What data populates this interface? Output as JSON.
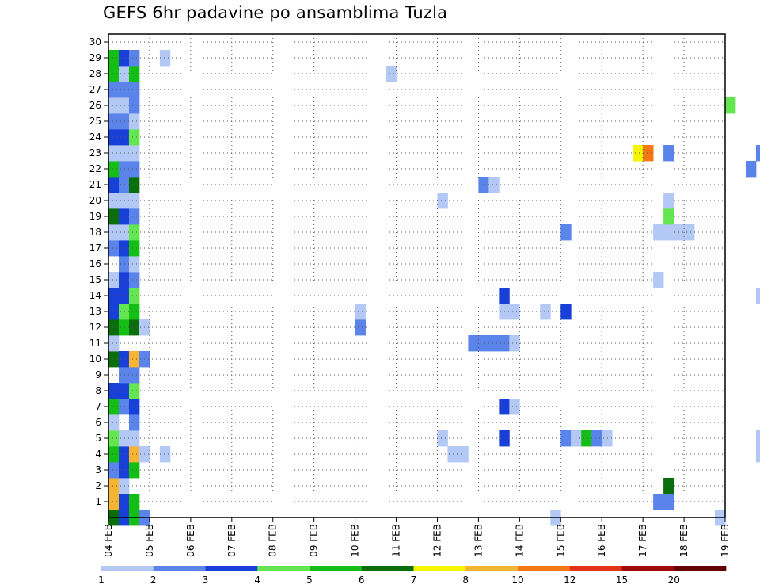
{
  "chart_data": {
    "type": "heatmap",
    "title": "GEFS 6hr padavine po ansamblima Tuzla",
    "xlabel": "",
    "ylabel": "",
    "x_tick_labels": [
      "04 FEB",
      "05 FEB",
      "06 FEB",
      "07 FEB",
      "08 FEB",
      "09 FEB",
      "10 FEB",
      "11 FEB",
      "12 FEB",
      "13 FEB",
      "14 FEB",
      "15 FEB",
      "16 FEB",
      "17 FEB",
      "18 FEB",
      "19 FEB"
    ],
    "y_tick_labels": [
      "1",
      "2",
      "3",
      "4",
      "5",
      "6",
      "7",
      "8",
      "9",
      "10",
      "11",
      "12",
      "13",
      "14",
      "15",
      "16",
      "17",
      "18",
      "19",
      "20",
      "21",
      "22",
      "23",
      "24",
      "25",
      "26",
      "27",
      "28",
      "29",
      "30"
    ],
    "time_steps_per_day": 4,
    "x_range_days": [
      0,
      15
    ],
    "members_range": [
      0,
      30
    ],
    "grid": true,
    "colorbar": {
      "tick_labels": [
        "1",
        "2",
        "3",
        "4",
        "5",
        "6",
        "7",
        "8",
        "10",
        "12",
        "15",
        "20"
      ],
      "colors": [
        "#b4c8f5",
        "#5a84ea",
        "#1840d8",
        "#64e650",
        "#14be14",
        "#0a6e0a",
        "#f5f500",
        "#f5b432",
        "#f57814",
        "#e63214",
        "#a00a0a",
        "#640000"
      ]
    },
    "cells": [
      [
        0,
        0,
        5
      ],
      [
        0,
        1,
        7
      ],
      [
        0,
        2,
        7
      ],
      [
        0,
        3,
        1
      ],
      [
        0,
        4,
        4
      ],
      [
        0,
        5,
        3
      ],
      [
        0,
        6,
        0
      ],
      [
        0,
        7,
        4
      ],
      [
        0,
        8,
        2
      ],
      [
        0,
        10,
        5
      ],
      [
        0,
        11,
        0
      ],
      [
        0,
        12,
        5
      ],
      [
        0,
        13,
        2
      ],
      [
        0,
        14,
        2
      ],
      [
        0,
        15,
        0
      ],
      [
        0,
        17,
        1
      ],
      [
        0,
        18,
        0
      ],
      [
        0,
        19,
        5
      ],
      [
        0,
        20,
        0
      ],
      [
        0,
        21,
        2
      ],
      [
        0,
        22,
        4
      ],
      [
        0,
        23,
        0
      ],
      [
        0,
        24,
        2
      ],
      [
        0,
        25,
        1
      ],
      [
        0,
        26,
        0
      ],
      [
        0,
        27,
        1
      ],
      [
        0,
        28,
        4
      ],
      [
        0,
        29,
        4
      ],
      [
        1,
        0,
        2
      ],
      [
        1,
        1,
        2
      ],
      [
        1,
        2,
        0
      ],
      [
        1,
        3,
        2
      ],
      [
        1,
        4,
        2
      ],
      [
        1,
        5,
        0
      ],
      [
        1,
        7,
        1
      ],
      [
        1,
        8,
        2
      ],
      [
        1,
        9,
        1
      ],
      [
        1,
        10,
        2
      ],
      [
        1,
        12,
        4
      ],
      [
        1,
        13,
        3
      ],
      [
        1,
        14,
        2
      ],
      [
        1,
        15,
        2
      ],
      [
        1,
        16,
        1
      ],
      [
        1,
        17,
        2
      ],
      [
        1,
        18,
        0
      ],
      [
        1,
        19,
        2
      ],
      [
        1,
        20,
        0
      ],
      [
        1,
        21,
        1
      ],
      [
        1,
        22,
        1
      ],
      [
        1,
        23,
        0
      ],
      [
        1,
        24,
        2
      ],
      [
        1,
        25,
        1
      ],
      [
        1,
        26,
        0
      ],
      [
        1,
        27,
        1
      ],
      [
        1,
        28,
        0
      ],
      [
        1,
        29,
        2
      ],
      [
        2,
        0,
        4
      ],
      [
        2,
        1,
        4
      ],
      [
        2,
        3,
        4
      ],
      [
        2,
        4,
        7
      ],
      [
        2,
        5,
        0
      ],
      [
        2,
        6,
        1
      ],
      [
        2,
        7,
        2
      ],
      [
        2,
        8,
        3
      ],
      [
        2,
        9,
        1
      ],
      [
        2,
        10,
        7
      ],
      [
        2,
        12,
        5
      ],
      [
        2,
        13,
        4
      ],
      [
        2,
        14,
        3
      ],
      [
        2,
        15,
        1
      ],
      [
        2,
        16,
        0
      ],
      [
        2,
        17,
        4
      ],
      [
        2,
        18,
        3
      ],
      [
        2,
        19,
        1
      ],
      [
        2,
        20,
        0
      ],
      [
        2,
        21,
        5
      ],
      [
        2,
        22,
        1
      ],
      [
        2,
        23,
        0
      ],
      [
        2,
        24,
        3
      ],
      [
        2,
        25,
        0
      ],
      [
        2,
        26,
        1
      ],
      [
        2,
        27,
        1
      ],
      [
        2,
        28,
        4
      ],
      [
        2,
        29,
        1
      ],
      [
        3,
        0,
        1
      ],
      [
        3,
        4,
        0
      ],
      [
        3,
        10,
        1
      ],
      [
        3,
        12,
        0
      ],
      [
        5,
        4,
        0
      ],
      [
        5,
        29,
        0
      ],
      [
        24,
        12,
        1
      ],
      [
        24,
        13,
        0
      ],
      [
        27,
        28,
        0
      ],
      [
        32,
        5,
        0
      ],
      [
        32,
        20,
        0
      ],
      [
        33,
        4,
        0
      ],
      [
        34,
        4,
        0
      ],
      [
        35,
        11,
        1
      ],
      [
        36,
        11,
        1
      ],
      [
        36,
        21,
        1
      ],
      [
        37,
        11,
        1
      ],
      [
        37,
        21,
        0
      ],
      [
        38,
        5,
        2
      ],
      [
        38,
        7,
        2
      ],
      [
        38,
        11,
        1
      ],
      [
        38,
        13,
        0
      ],
      [
        38,
        14,
        2
      ],
      [
        39,
        7,
        0
      ],
      [
        39,
        11,
        0
      ],
      [
        39,
        13,
        0
      ],
      [
        42,
        13,
        0
      ],
      [
        43,
        0,
        0
      ],
      [
        44,
        5,
        1
      ],
      [
        44,
        13,
        2
      ],
      [
        44,
        18,
        1
      ],
      [
        45,
        5,
        0
      ],
      [
        45,
        5,
        0
      ],
      [
        46,
        5,
        4
      ],
      [
        47,
        5,
        1
      ],
      [
        48,
        5,
        0
      ],
      [
        51,
        23,
        6
      ],
      [
        51,
        23,
        6
      ],
      [
        52,
        23,
        8
      ],
      [
        53,
        1,
        1
      ],
      [
        53,
        15,
        0
      ],
      [
        53,
        18,
        0
      ],
      [
        54,
        1,
        1
      ],
      [
        54,
        2,
        5
      ],
      [
        54,
        18,
        0
      ],
      [
        54,
        19,
        3
      ],
      [
        54,
        20,
        0
      ],
      [
        54,
        23,
        1
      ],
      [
        55,
        18,
        0
      ],
      [
        56,
        18,
        0
      ],
      [
        59,
        0,
        0
      ],
      [
        60,
        26,
        3
      ],
      [
        62,
        22,
        1
      ],
      [
        63,
        4,
        0
      ],
      [
        63,
        5,
        0
      ],
      [
        63,
        14,
        0
      ],
      [
        63,
        23,
        1
      ],
      [
        64,
        4,
        6
      ],
      [
        64,
        7,
        4
      ],
      [
        64,
        23,
        3
      ],
      [
        65,
        4,
        1
      ],
      [
        65,
        7,
        1
      ],
      [
        65,
        23,
        6
      ],
      [
        66,
        0,
        1
      ],
      [
        66,
        3,
        2
      ],
      [
        66,
        22,
        5
      ],
      [
        66,
        26,
        1
      ]
    ]
  }
}
